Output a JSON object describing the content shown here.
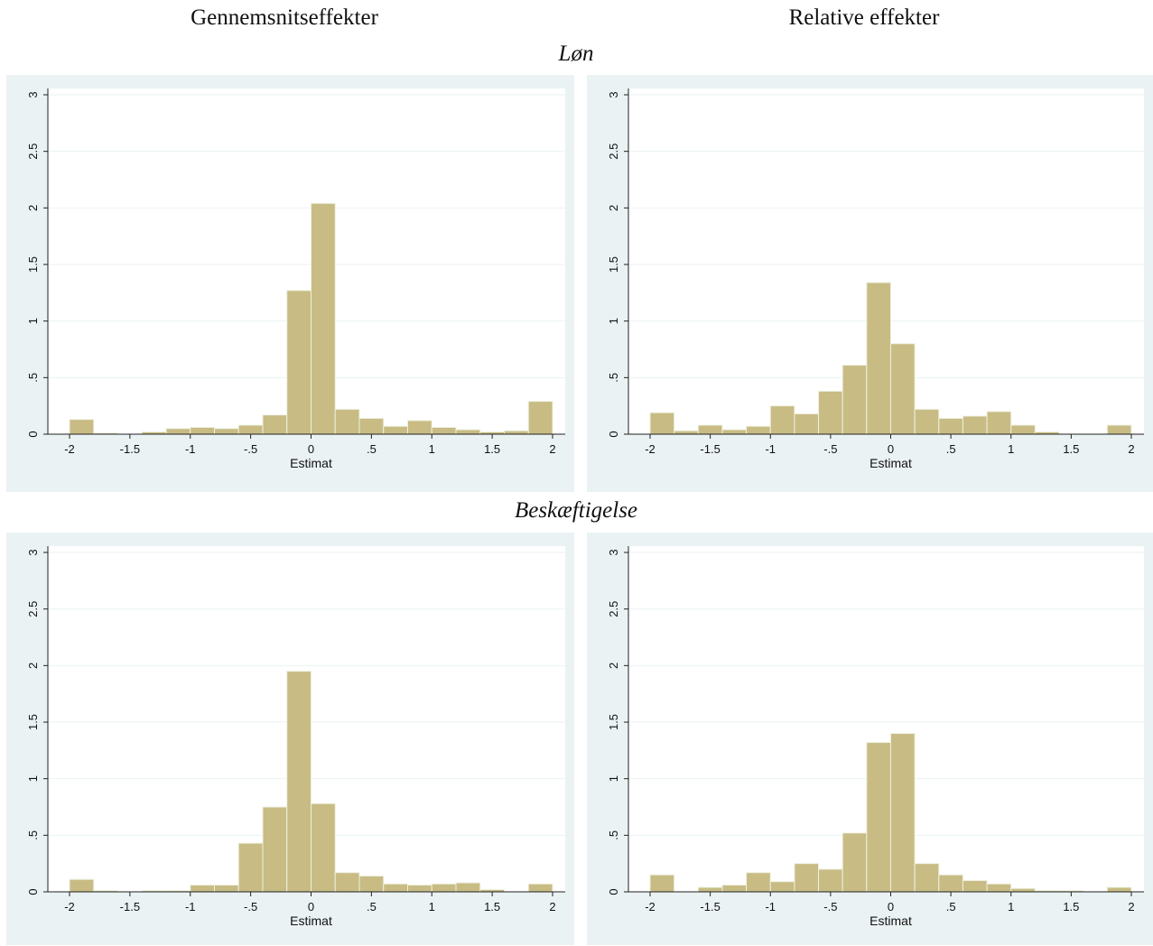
{
  "column_titles": [
    "Gennemsnitseffekter",
    "Relative effekter"
  ],
  "row_titles": [
    "Løn",
    "Beskæftigelse"
  ],
  "chart_data": [
    {
      "type": "bar",
      "title": "",
      "row": "Løn",
      "column": "Gennemsnitseffekter",
      "xlabel": "Estimat",
      "ylabel": "",
      "xlim": [
        -2,
        2
      ],
      "ylim": [
        0,
        3
      ],
      "xticks": [
        "-2",
        "-1.5",
        "-1",
        "-.5",
        "0",
        ".5",
        "1",
        "1.5",
        "2"
      ],
      "yticks": [
        "0",
        ".5",
        "1",
        "1.5",
        "2",
        "2.5",
        "3"
      ],
      "bin_width": 0.2,
      "bin_starts": [
        -2.0,
        -1.8,
        -1.6,
        -1.4,
        -1.2,
        -1.0,
        -0.8,
        -0.6,
        -0.4,
        -0.2,
        0.0,
        0.2,
        0.4,
        0.6,
        0.8,
        1.0,
        1.2,
        1.4,
        1.6,
        1.8
      ],
      "values": [
        0.13,
        0.01,
        0.0,
        0.02,
        0.05,
        0.06,
        0.05,
        0.08,
        0.17,
        1.27,
        2.04,
        0.22,
        0.14,
        0.07,
        0.12,
        0.06,
        0.04,
        0.02,
        0.03,
        0.29
      ],
      "bar_color": "#c8bc84",
      "grid": true
    },
    {
      "type": "bar",
      "title": "",
      "row": "Løn",
      "column": "Relative effekter",
      "xlabel": "Estimat",
      "ylabel": "",
      "xlim": [
        -2,
        2
      ],
      "ylim": [
        0,
        3
      ],
      "xticks": [
        "-2",
        "-1.5",
        "-1",
        "-.5",
        "0",
        ".5",
        "1",
        "1.5",
        "2"
      ],
      "yticks": [
        "0",
        ".5",
        "1",
        "1.5",
        "2",
        "2.5",
        "3"
      ],
      "bin_width": 0.2,
      "bin_starts": [
        -2.0,
        -1.8,
        -1.6,
        -1.4,
        -1.2,
        -1.0,
        -0.8,
        -0.6,
        -0.4,
        -0.2,
        0.0,
        0.2,
        0.4,
        0.6,
        0.8,
        1.0,
        1.2,
        1.4,
        1.6,
        1.8
      ],
      "values": [
        0.19,
        0.03,
        0.08,
        0.04,
        0.07,
        0.25,
        0.18,
        0.38,
        0.61,
        1.34,
        0.8,
        0.22,
        0.14,
        0.16,
        0.2,
        0.08,
        0.02,
        0.0,
        0.0,
        0.08
      ],
      "bar_color": "#c8bc84",
      "grid": true
    },
    {
      "type": "bar",
      "title": "",
      "row": "Beskæftigelse",
      "column": "Gennemsnitseffekter",
      "xlabel": "Estimat",
      "ylabel": "",
      "xlim": [
        -2,
        2
      ],
      "ylim": [
        0,
        3
      ],
      "xticks": [
        "-2",
        "-1.5",
        "-1",
        "-.5",
        "0",
        ".5",
        "1",
        "1.5",
        "2"
      ],
      "yticks": [
        "0",
        ".5",
        "1",
        "1.5",
        "2",
        "2.5",
        "3"
      ],
      "bin_width": 0.2,
      "bin_starts": [
        -2.0,
        -1.8,
        -1.6,
        -1.4,
        -1.2,
        -1.0,
        -0.8,
        -0.6,
        -0.4,
        -0.2,
        0.0,
        0.2,
        0.4,
        0.6,
        0.8,
        1.0,
        1.2,
        1.4,
        1.6,
        1.8
      ],
      "values": [
        0.11,
        0.01,
        0.0,
        0.01,
        0.01,
        0.06,
        0.06,
        0.43,
        0.75,
        1.95,
        0.78,
        0.17,
        0.14,
        0.07,
        0.06,
        0.07,
        0.08,
        0.02,
        0.0,
        0.07
      ],
      "bar_color": "#c8bc84",
      "grid": true
    },
    {
      "type": "bar",
      "title": "",
      "row": "Beskæftigelse",
      "column": "Relative effekter",
      "xlabel": "Estimat",
      "ylabel": "",
      "xlim": [
        -2,
        2
      ],
      "ylim": [
        0,
        3
      ],
      "xticks": [
        "-2",
        "-1.5",
        "-1",
        "-.5",
        "0",
        ".5",
        "1",
        "1.5",
        "2"
      ],
      "yticks": [
        "0",
        ".5",
        "1",
        "1.5",
        "2",
        "2.5",
        "3"
      ],
      "bin_width": 0.2,
      "bin_starts": [
        -2.0,
        -1.8,
        -1.6,
        -1.4,
        -1.2,
        -1.0,
        -0.8,
        -0.6,
        -0.4,
        -0.2,
        0.0,
        0.2,
        0.4,
        0.6,
        0.8,
        1.0,
        1.2,
        1.4,
        1.6,
        1.8
      ],
      "values": [
        0.15,
        0.0,
        0.04,
        0.06,
        0.17,
        0.09,
        0.25,
        0.2,
        0.52,
        1.32,
        1.4,
        0.25,
        0.15,
        0.1,
        0.07,
        0.03,
        0.01,
        0.01,
        0.0,
        0.04
      ],
      "bar_color": "#c8bc84",
      "grid": true
    }
  ]
}
